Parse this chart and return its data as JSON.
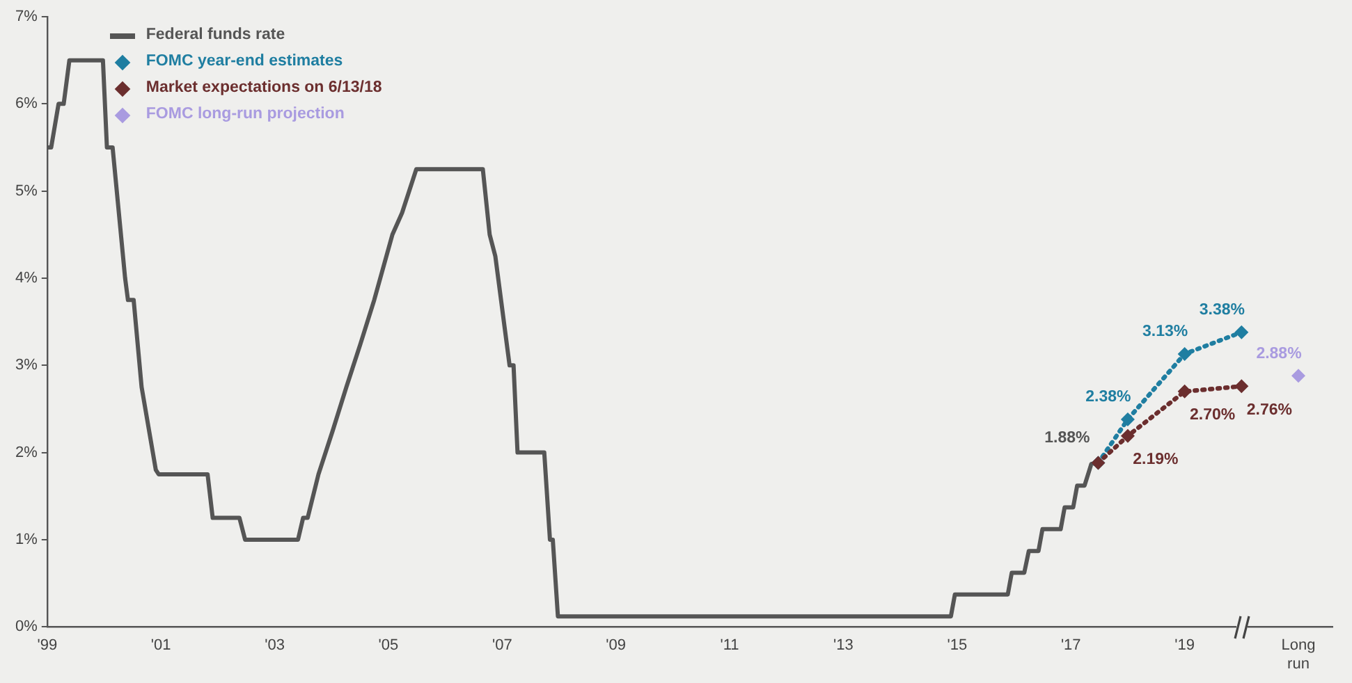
{
  "chart_data": {
    "type": "line",
    "xlim": [
      1999,
      2021.6
    ],
    "xticks": [
      {
        "value": 1999,
        "label": "'99"
      },
      {
        "value": 2001,
        "label": "'01"
      },
      {
        "value": 2003,
        "label": "'03"
      },
      {
        "value": 2005,
        "label": "'05"
      },
      {
        "value": 2007,
        "label": "'07"
      },
      {
        "value": 2009,
        "label": "'09"
      },
      {
        "value": 2011,
        "label": "'11"
      },
      {
        "value": 2013,
        "label": "'13"
      },
      {
        "value": 2015,
        "label": "'15"
      },
      {
        "value": 2017,
        "label": "'17"
      },
      {
        "value": 2019,
        "label": "'19"
      },
      {
        "value": 2021,
        "label": "Long run"
      }
    ],
    "ylim": [
      0,
      7
    ],
    "yticks": [
      {
        "value": 0,
        "label": "0%"
      },
      {
        "value": 1,
        "label": "1%"
      },
      {
        "value": 2,
        "label": "2%"
      },
      {
        "value": 3,
        "label": "3%"
      },
      {
        "value": 4,
        "label": "4%"
      },
      {
        "value": 5,
        "label": "5%"
      },
      {
        "value": 6,
        "label": "6%"
      },
      {
        "value": 7,
        "label": "7%"
      }
    ],
    "grid": false,
    "legend": "top left",
    "marker": "diamond",
    "annotations": [
      {
        "text": "1.88%",
        "x": 2017.48,
        "y": 1.88
      }
    ],
    "series": [
      {
        "name": "Federal funds rate",
        "color": "#555555",
        "marker": "none",
        "line_style": "solid",
        "x": [
          1999.0,
          1999.07,
          1999.2,
          1999.29,
          1999.39,
          1999.98,
          2000.05,
          2000.15,
          2000.37,
          2000.42,
          2000.52,
          2000.66,
          2000.91,
          2000.96,
          2001.82,
          2001.91,
          2002.38,
          2002.48,
          2003.41,
          2003.5,
          2003.58,
          2003.77,
          2004.02,
          2004.26,
          2004.51,
          2004.75,
          2005.07,
          2005.24,
          2005.49,
          2006.66,
          2006.78,
          2006.88,
          2007.13,
          2007.2,
          2007.27,
          2007.74,
          2007.84,
          2007.89,
          2007.98,
          2014.89,
          2014.96,
          2015.89,
          2015.96,
          2016.18,
          2016.26,
          2016.43,
          2016.5,
          2016.82,
          2016.89,
          2017.04,
          2017.11,
          2017.24,
          2017.36,
          2017.48
        ],
        "values": [
          5.5,
          5.5,
          6.0,
          6.0,
          6.5,
          6.5,
          5.5,
          5.5,
          4.0,
          3.75,
          3.75,
          2.75,
          1.8,
          1.75,
          1.75,
          1.25,
          1.25,
          1.0,
          1.0,
          1.25,
          1.25,
          1.75,
          2.25,
          2.75,
          3.25,
          3.75,
          4.5,
          4.75,
          5.25,
          5.25,
          4.5,
          4.25,
          3.0,
          3.0,
          2.0,
          2.0,
          1.0,
          1.0,
          0.12,
          0.12,
          0.37,
          0.37,
          0.62,
          0.62,
          0.87,
          0.87,
          1.12,
          1.12,
          1.37,
          1.37,
          1.62,
          1.62,
          1.87,
          1.88
        ]
      },
      {
        "name": "FOMC year-end estimates",
        "color": "#1f7ea1",
        "line_style": "dotted",
        "x": [
          2017.48,
          2018,
          2019,
          2020
        ],
        "values": [
          1.88,
          2.38,
          3.13,
          3.38
        ],
        "value_labels": [
          null,
          "2.38%",
          "3.13%",
          "3.38%"
        ]
      },
      {
        "name": "Market expectations on 6/13/18",
        "color": "#6b2e2e",
        "line_style": "dotted",
        "x": [
          2017.48,
          2018,
          2019,
          2020
        ],
        "values": [
          1.88,
          2.19,
          2.7,
          2.76
        ],
        "value_labels": [
          null,
          "2.19%",
          "2.70%",
          "2.76%"
        ]
      },
      {
        "name": "FOMC long-run projection",
        "color": "#a99be0",
        "line_style": "none",
        "x": [
          2021
        ],
        "values": [
          2.88
        ],
        "value_labels": [
          "2.88%"
        ]
      }
    ]
  }
}
